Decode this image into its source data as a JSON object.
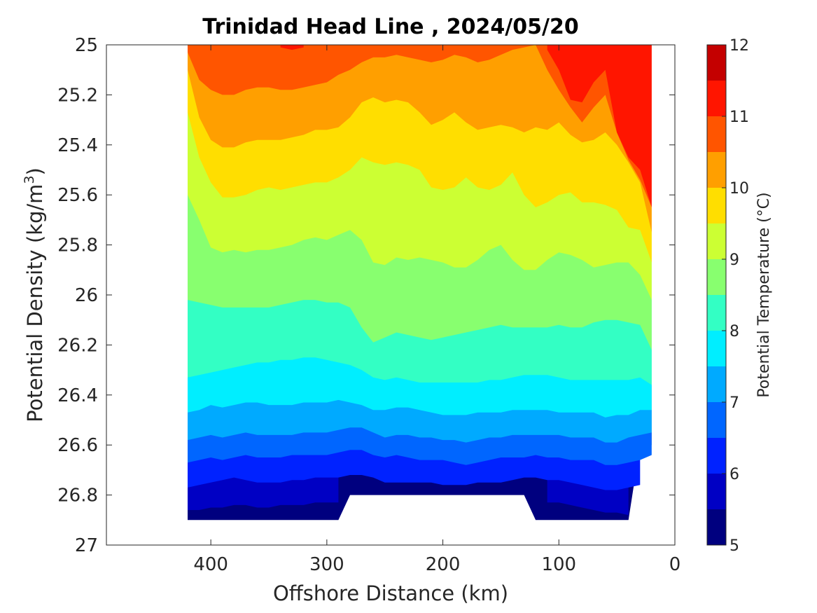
{
  "chart_data": {
    "type": "contour",
    "title": "Trinidad Head Line , 2024/05/20",
    "xlabel": "Offshore Distance (km)",
    "ylabel": {
      "base": "Potential Density (kg/m",
      "sup": "3",
      "close": ")"
    },
    "xlim": [
      490,
      0
    ],
    "ylim": [
      25,
      27
    ],
    "x_reversed": true,
    "y_reversed": true,
    "xticks": [
      400,
      300,
      200,
      100,
      0
    ],
    "yticks": [
      25,
      25.2,
      25.4,
      25.6,
      25.8,
      26,
      26.2,
      26.4,
      26.6,
      26.8,
      27
    ],
    "colorbar": {
      "label": "Potential Temperature (°C)",
      "range": [
        5,
        12
      ],
      "ticks": [
        5,
        6,
        7,
        8,
        9,
        10,
        11,
        12
      ],
      "levels": [
        5,
        5.5,
        6,
        6.5,
        7,
        7.5,
        8,
        8.5,
        9,
        9.5,
        10,
        10.5,
        11,
        11.5,
        12
      ],
      "colors": [
        "#00007f",
        "#0000c4",
        "#0022ff",
        "#0066ff",
        "#00aaff",
        "#00eeff",
        "#33ffc4",
        "#88ff6f",
        "#ccff33",
        "#ffde00",
        "#ff9f00",
        "#ff5500",
        "#ff1500",
        "#c40000"
      ]
    },
    "x": [
      420,
      410,
      400,
      390,
      380,
      370,
      360,
      350,
      340,
      330,
      320,
      310,
      300,
      290,
      280,
      270,
      260,
      250,
      240,
      230,
      220,
      210,
      200,
      190,
      180,
      170,
      160,
      150,
      140,
      130,
      120,
      110,
      100,
      90,
      80,
      70,
      60,
      50,
      40,
      30,
      20
    ],
    "isopycnal_depth_of_isotherms": [
      {
        "isotherm": 5.5,
        "sigma": [
          26.86,
          26.86,
          26.85,
          26.85,
          26.84,
          26.84,
          26.85,
          26.85,
          26.84,
          26.84,
          26.84,
          26.83,
          26.83,
          26.83,
          null,
          null,
          null,
          null,
          null,
          null,
          null,
          null,
          null,
          null,
          null,
          null,
          null,
          null,
          null,
          null,
          null,
          26.83,
          26.83,
          26.84,
          26.85,
          26.86,
          26.87,
          26.87,
          26.88,
          null,
          null
        ]
      },
      {
        "isotherm": 6,
        "sigma": [
          26.77,
          26.76,
          26.75,
          26.74,
          26.73,
          26.74,
          26.75,
          26.75,
          26.75,
          26.74,
          26.74,
          26.73,
          26.73,
          26.73,
          26.72,
          26.72,
          26.73,
          26.75,
          26.75,
          26.75,
          26.75,
          26.75,
          26.76,
          26.76,
          26.76,
          26.75,
          26.75,
          26.75,
          26.74,
          26.73,
          26.73,
          26.74,
          26.74,
          26.75,
          26.76,
          26.77,
          26.78,
          26.78,
          26.77,
          26.76,
          null
        ]
      },
      {
        "isotherm": 6.5,
        "sigma": [
          26.67,
          26.66,
          26.65,
          26.66,
          26.65,
          26.64,
          26.65,
          26.65,
          26.65,
          26.64,
          26.64,
          26.64,
          26.64,
          26.63,
          26.62,
          26.62,
          26.64,
          26.65,
          26.64,
          26.65,
          26.66,
          26.66,
          26.66,
          26.67,
          26.68,
          26.67,
          26.66,
          26.65,
          26.65,
          26.65,
          26.64,
          26.65,
          26.65,
          26.66,
          26.66,
          26.66,
          26.68,
          26.68,
          26.67,
          26.66,
          26.64
        ]
      },
      {
        "isotherm": 7,
        "sigma": [
          26.58,
          26.57,
          26.56,
          26.57,
          26.56,
          26.55,
          26.56,
          26.56,
          26.56,
          26.56,
          26.55,
          26.55,
          26.55,
          26.54,
          26.53,
          26.53,
          26.55,
          26.57,
          26.56,
          26.56,
          26.57,
          26.57,
          26.58,
          26.58,
          26.59,
          26.58,
          26.57,
          26.57,
          26.56,
          26.56,
          26.56,
          26.56,
          26.56,
          26.57,
          26.57,
          26.57,
          26.59,
          26.59,
          26.57,
          26.56,
          26.55
        ]
      },
      {
        "isotherm": 7.5,
        "sigma": [
          26.47,
          26.46,
          26.44,
          26.45,
          26.44,
          26.43,
          26.43,
          26.44,
          26.44,
          26.44,
          26.43,
          26.43,
          26.43,
          26.42,
          26.43,
          26.44,
          26.46,
          26.46,
          26.45,
          26.45,
          26.46,
          26.47,
          26.48,
          26.48,
          26.48,
          26.47,
          26.47,
          26.47,
          26.46,
          26.46,
          26.46,
          26.46,
          26.47,
          26.47,
          26.47,
          26.47,
          26.49,
          26.48,
          26.48,
          26.46,
          26.46
        ]
      },
      {
        "isotherm": 8,
        "sigma": [
          26.33,
          26.32,
          26.31,
          26.3,
          26.29,
          26.28,
          26.27,
          26.27,
          26.26,
          26.26,
          26.25,
          26.25,
          26.26,
          26.27,
          26.28,
          26.3,
          26.33,
          26.34,
          26.33,
          26.34,
          26.35,
          26.35,
          26.35,
          26.35,
          26.35,
          26.35,
          26.34,
          26.34,
          26.33,
          26.32,
          26.32,
          26.32,
          26.33,
          26.34,
          26.34,
          26.34,
          26.34,
          26.34,
          26.34,
          26.33,
          26.36
        ]
      },
      {
        "isotherm": 8.5,
        "sigma": [
          26.02,
          26.03,
          26.04,
          26.05,
          26.05,
          26.05,
          26.05,
          26.05,
          26.04,
          26.03,
          26.02,
          26.02,
          26.03,
          26.03,
          26.05,
          26.13,
          26.19,
          26.17,
          26.15,
          26.16,
          26.17,
          26.18,
          26.17,
          26.16,
          26.15,
          26.14,
          26.13,
          26.12,
          26.13,
          26.13,
          26.13,
          26.13,
          26.12,
          26.13,
          26.13,
          26.11,
          26.1,
          26.1,
          26.11,
          26.12,
          26.22
        ]
      },
      {
        "isotherm": 9,
        "sigma": [
          25.6,
          25.7,
          25.81,
          25.83,
          25.82,
          25.83,
          25.82,
          25.82,
          25.81,
          25.8,
          25.78,
          25.77,
          25.78,
          25.76,
          25.74,
          25.78,
          25.87,
          25.88,
          25.85,
          25.86,
          25.85,
          25.86,
          25.87,
          25.89,
          25.89,
          25.86,
          25.82,
          25.8,
          25.86,
          25.9,
          25.9,
          25.86,
          25.83,
          25.84,
          25.86,
          25.89,
          25.88,
          25.87,
          25.87,
          25.92,
          26.02
        ]
      },
      {
        "isotherm": 9.5,
        "sigma": [
          25.27,
          25.45,
          25.55,
          25.61,
          25.61,
          25.6,
          25.58,
          25.57,
          25.58,
          25.57,
          25.56,
          25.55,
          25.55,
          25.53,
          25.5,
          25.45,
          25.47,
          25.48,
          25.47,
          25.48,
          25.5,
          25.57,
          25.58,
          25.57,
          25.53,
          25.57,
          25.58,
          25.56,
          25.51,
          25.6,
          25.65,
          25.63,
          25.6,
          25.59,
          25.63,
          25.63,
          25.64,
          25.66,
          25.73,
          25.74,
          25.87
        ]
      },
      {
        "isotherm": 10,
        "sigma": [
          25.1,
          25.29,
          25.38,
          25.41,
          25.41,
          25.39,
          25.38,
          25.38,
          25.38,
          25.37,
          25.36,
          25.34,
          25.34,
          25.33,
          25.29,
          25.23,
          25.21,
          25.23,
          25.22,
          25.23,
          25.27,
          25.32,
          25.3,
          25.27,
          25.31,
          25.34,
          25.33,
          25.32,
          25.33,
          25.35,
          25.33,
          25.34,
          25.31,
          25.36,
          25.39,
          25.38,
          25.35,
          25.4,
          25.47,
          25.55,
          25.75
        ]
      },
      {
        "isotherm": 10.5,
        "sigma": [
          25.03,
          25.14,
          25.18,
          25.2,
          25.2,
          25.18,
          25.17,
          25.17,
          25.18,
          25.18,
          25.17,
          25.16,
          25.15,
          25.12,
          25.1,
          25.07,
          25.05,
          25.05,
          25.04,
          25.05,
          25.06,
          25.07,
          25.06,
          25.04,
          25.05,
          25.07,
          25.06,
          25.04,
          25.02,
          25.01,
          25.0,
          25.1,
          25.18,
          25.25,
          25.31,
          25.25,
          25.2,
          25.35,
          25.46,
          25.54,
          25.65
        ]
      },
      {
        "isotherm": 11,
        "sigma": [
          null,
          null,
          null,
          null,
          null,
          null,
          null,
          null,
          25.01,
          25.02,
          25.01,
          null,
          null,
          null,
          null,
          null,
          null,
          null,
          null,
          null,
          null,
          null,
          null,
          null,
          null,
          null,
          null,
          null,
          null,
          null,
          null,
          25.02,
          25.1,
          25.22,
          25.23,
          25.15,
          25.1,
          25.35,
          25.45,
          25.5,
          25.65
        ]
      }
    ],
    "data_extent": {
      "x_max_km": 420,
      "x_min_km": 20,
      "bottom_sigma": [
        {
          "from_km": 420,
          "to_km": 290,
          "sigma": 26.9
        },
        {
          "from_km": 280,
          "to_km": 130,
          "sigma": 26.8
        },
        {
          "from_km": 120,
          "to_km": 40,
          "sigma": 26.9
        },
        {
          "from_km": 30,
          "to_km": 20,
          "sigma": 26.6
        }
      ]
    }
  }
}
